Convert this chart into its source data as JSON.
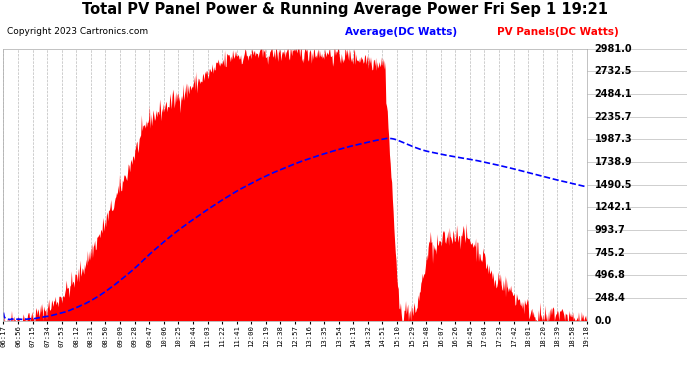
{
  "title": "Total PV Panel Power & Running Average Power Fri Sep 1 19:21",
  "copyright": "Copyright 2023 Cartronics.com",
  "legend_avg": "Average(DC Watts)",
  "legend_pv": "PV Panels(DC Watts)",
  "bg_color": "#ffffff",
  "plot_bg_color": "#ffffff",
  "grid_color": "#aaaaaa",
  "pv_color": "#ff0000",
  "avg_color": "#0000ff",
  "ymin": 0.0,
  "ymax": 2981.0,
  "yticks": [
    0.0,
    248.4,
    496.8,
    745.2,
    993.7,
    1242.1,
    1490.5,
    1738.9,
    1987.3,
    2235.7,
    2484.1,
    2732.5,
    2981.0
  ],
  "xtick_labels": [
    "06:17",
    "06:56",
    "07:15",
    "07:34",
    "07:53",
    "08:12",
    "08:31",
    "08:50",
    "09:09",
    "09:28",
    "09:47",
    "10:06",
    "10:25",
    "10:44",
    "11:03",
    "11:22",
    "11:41",
    "12:00",
    "12:19",
    "12:38",
    "12:57",
    "13:16",
    "13:35",
    "13:54",
    "14:13",
    "14:32",
    "14:51",
    "15:10",
    "15:29",
    "15:48",
    "16:07",
    "16:26",
    "16:45",
    "17:04",
    "17:23",
    "17:42",
    "18:01",
    "18:20",
    "18:39",
    "18:58",
    "19:18"
  ]
}
